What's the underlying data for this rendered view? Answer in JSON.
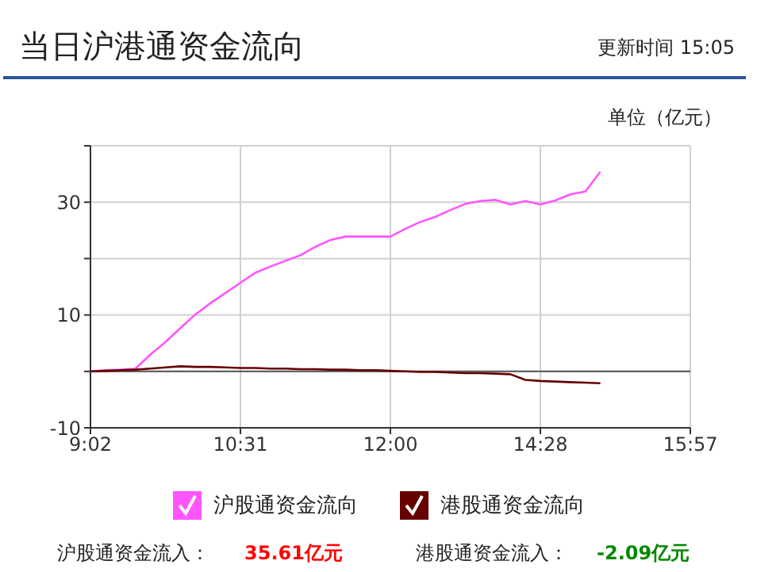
{
  "chart_data": {
    "type": "line",
    "title": "当日沪港通资金流向",
    "ylabel": "单位（亿元）",
    "annotations": [
      "更新时间 15:05",
      "沪股通资金流入：",
      "35.61亿元",
      "港股通资金流入：",
      "-2.09亿元"
    ],
    "categories": [
      "9:02",
      null,
      null,
      null,
      null,
      null,
      null,
      null,
      null,
      null,
      "10:31",
      null,
      null,
      null,
      null,
      null,
      null,
      null,
      null,
      null,
      "12:00",
      null,
      null,
      null,
      null,
      null,
      null,
      null,
      null,
      null,
      "14:28",
      null,
      null,
      null,
      null,
      null,
      null,
      null,
      null,
      null,
      "15:57"
    ],
    "series": [
      {
        "name": "沪股通资金流向",
        "color": "#ff55ff",
        "values": [
          0,
          0.2,
          0.3,
          0.5,
          3.0,
          5.2,
          7.7,
          10.1,
          12.1,
          13.9,
          15.7,
          17.5,
          18.6,
          19.6,
          20.6,
          22.1,
          23.3,
          23.9,
          23.9,
          23.9,
          23.9,
          25.3,
          26.5,
          27.4,
          28.6,
          29.7,
          30.2,
          30.4,
          29.6,
          30.2,
          29.6,
          30.3,
          31.4,
          31.9,
          35.4,
          null,
          null,
          null,
          null,
          null,
          null
        ]
      },
      {
        "name": "港股通资金流向",
        "color": "#660000",
        "values": [
          0,
          0.1,
          0.2,
          0.3,
          0.5,
          0.7,
          0.9,
          0.8,
          0.8,
          0.7,
          0.6,
          0.6,
          0.5,
          0.5,
          0.4,
          0.4,
          0.3,
          0.3,
          0.2,
          0.2,
          0.1,
          0,
          -0.1,
          -0.1,
          -0.2,
          -0.3,
          -0.3,
          -0.4,
          -0.5,
          -1.5,
          -1.7,
          -1.8,
          -1.9,
          -2.0,
          -2.1,
          null,
          null,
          null,
          null,
          null,
          null
        ]
      }
    ],
    "ylim": [
      -10,
      40
    ],
    "yticks": [
      -10,
      {
        "value": 0,
        "label": null
      },
      10,
      {
        "value": 20,
        "label": null
      },
      30,
      {
        "value": 40,
        "label": null
      }
    ],
    "ref_lines": [
      {
        "axis": "y",
        "value": 0,
        "color": "#555555"
      }
    ],
    "grid": true,
    "legend": "bottom",
    "marker": "none",
    "line_style": "solid"
  }
}
